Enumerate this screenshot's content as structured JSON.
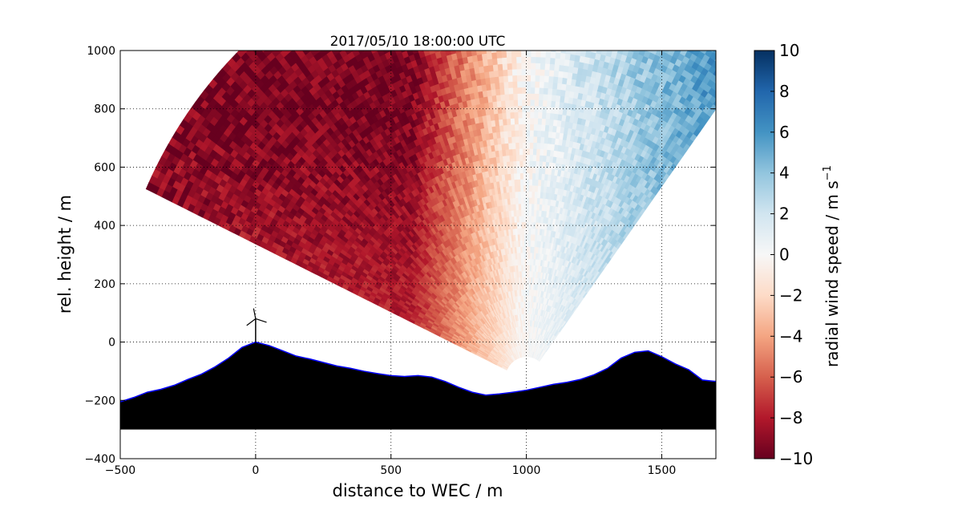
{
  "chart_data": {
    "type": "heatmap",
    "title": "2017/05/10 18:00:00 UTC",
    "xlabel": "distance to WEC / m",
    "ylabel": "rel. height / m",
    "xlim": [
      -500,
      1700
    ],
    "ylim": [
      -400,
      1000
    ],
    "xticks": [
      -500,
      0,
      500,
      1000,
      1500
    ],
    "xtick_labels": [
      "−500",
      "0",
      "500",
      "1000",
      "1500"
    ],
    "yticks": [
      -400,
      -200,
      0,
      200,
      400,
      600,
      800,
      1000
    ],
    "ytick_labels": [
      "−400",
      "−200",
      "0",
      "200",
      "400",
      "600",
      "800",
      "1000"
    ],
    "grid": true,
    "scan": {
      "origin": [
        1000,
        -130
      ],
      "min_range": 80,
      "max_range": 1550,
      "elevation_deg": [
        20,
        53
      ],
      "azimuth_sector_deg": [
        110,
        160
      ],
      "far_edge_x": 1700
    },
    "radial_velocity_pattern": {
      "left_of_lidar": "negative (about -6 to -10, strongest aloft)",
      "right_of_lidar": "positive (about +2 to +6)",
      "near_lidar": "about 0"
    },
    "terrain": {
      "points": [
        [
          -500,
          -205
        ],
        [
          -450,
          -190
        ],
        [
          -400,
          -172
        ],
        [
          -350,
          -162
        ],
        [
          -300,
          -148
        ],
        [
          -250,
          -128
        ],
        [
          -200,
          -110
        ],
        [
          -150,
          -85
        ],
        [
          -100,
          -55
        ],
        [
          -50,
          -18
        ],
        [
          0,
          0
        ],
        [
          50,
          -12
        ],
        [
          100,
          -30
        ],
        [
          150,
          -48
        ],
        [
          200,
          -58
        ],
        [
          250,
          -70
        ],
        [
          300,
          -82
        ],
        [
          350,
          -90
        ],
        [
          400,
          -100
        ],
        [
          450,
          -108
        ],
        [
          500,
          -115
        ],
        [
          550,
          -118
        ],
        [
          600,
          -115
        ],
        [
          650,
          -120
        ],
        [
          700,
          -135
        ],
        [
          750,
          -155
        ],
        [
          800,
          -172
        ],
        [
          850,
          -182
        ],
        [
          900,
          -178
        ],
        [
          950,
          -172
        ],
        [
          1000,
          -165
        ],
        [
          1050,
          -155
        ],
        [
          1100,
          -145
        ],
        [
          1150,
          -138
        ],
        [
          1200,
          -128
        ],
        [
          1250,
          -112
        ],
        [
          1300,
          -90
        ],
        [
          1350,
          -55
        ],
        [
          1400,
          -35
        ],
        [
          1450,
          -30
        ],
        [
          1500,
          -50
        ],
        [
          1550,
          -75
        ],
        [
          1600,
          -95
        ],
        [
          1650,
          -130
        ],
        [
          1700,
          -135
        ]
      ],
      "base": -300,
      "fill_color": "#000000",
      "outline_color": "#0000ff"
    },
    "turbine": {
      "x": 0,
      "hub_height": 80,
      "blade_length": 40
    },
    "colorbar": {
      "label": "radial wind speed / m s",
      "label_superscript": "−1",
      "vmin": -10,
      "vmax": 10,
      "ticks": [
        -10,
        -8,
        -6,
        -4,
        -2,
        0,
        2,
        4,
        6,
        8,
        10
      ],
      "tick_labels": [
        "−10",
        "−8",
        "−6",
        "−4",
        "−2",
        "0",
        "2",
        "4",
        "6",
        "8",
        "10"
      ],
      "colormap": "RdBu",
      "color_stops": [
        "#67001f",
        "#b2182b",
        "#d6604d",
        "#f4a582",
        "#fddbc7",
        "#f7f7f7",
        "#d1e5f0",
        "#92c5de",
        "#4393c3",
        "#2166ac",
        "#053061"
      ]
    }
  }
}
